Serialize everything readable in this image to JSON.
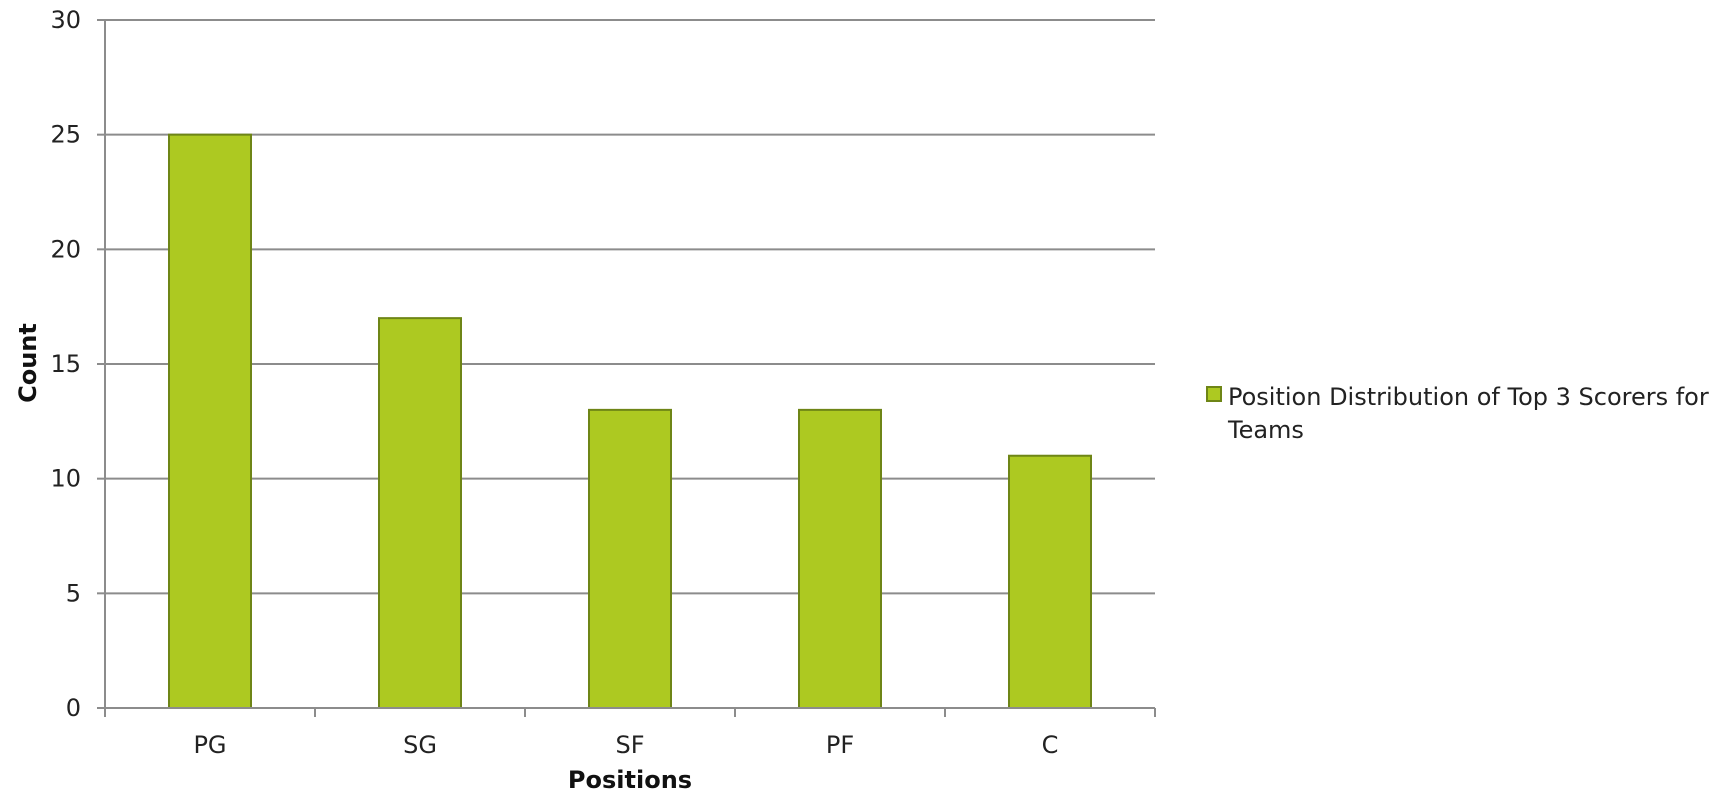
{
  "colors": {
    "bar_fill": "#adc921",
    "bar_edge": "#6e8516",
    "bar_highlight": "#c8dd55",
    "grid": "#8c8c8c",
    "axis": "#8c8c8c",
    "background": "#ffffff"
  },
  "chart_data": {
    "type": "bar",
    "categories": [
      "PG",
      "SG",
      "SF",
      "PF",
      "C"
    ],
    "series": [
      {
        "name": "Position Distribution of Top 3 Scorers for Teams",
        "values": [
          25,
          17,
          13,
          13,
          11
        ]
      }
    ],
    "xlabel": "Positions",
    "ylabel": "Count",
    "ylim": [
      0,
      30
    ],
    "yticks": [
      0,
      5,
      10,
      15,
      20,
      25,
      30
    ],
    "grid": true,
    "legend_position": "right",
    "legend_lines": [
      "Position Distribution of Top 3 Scorers for",
      "Teams"
    ]
  }
}
